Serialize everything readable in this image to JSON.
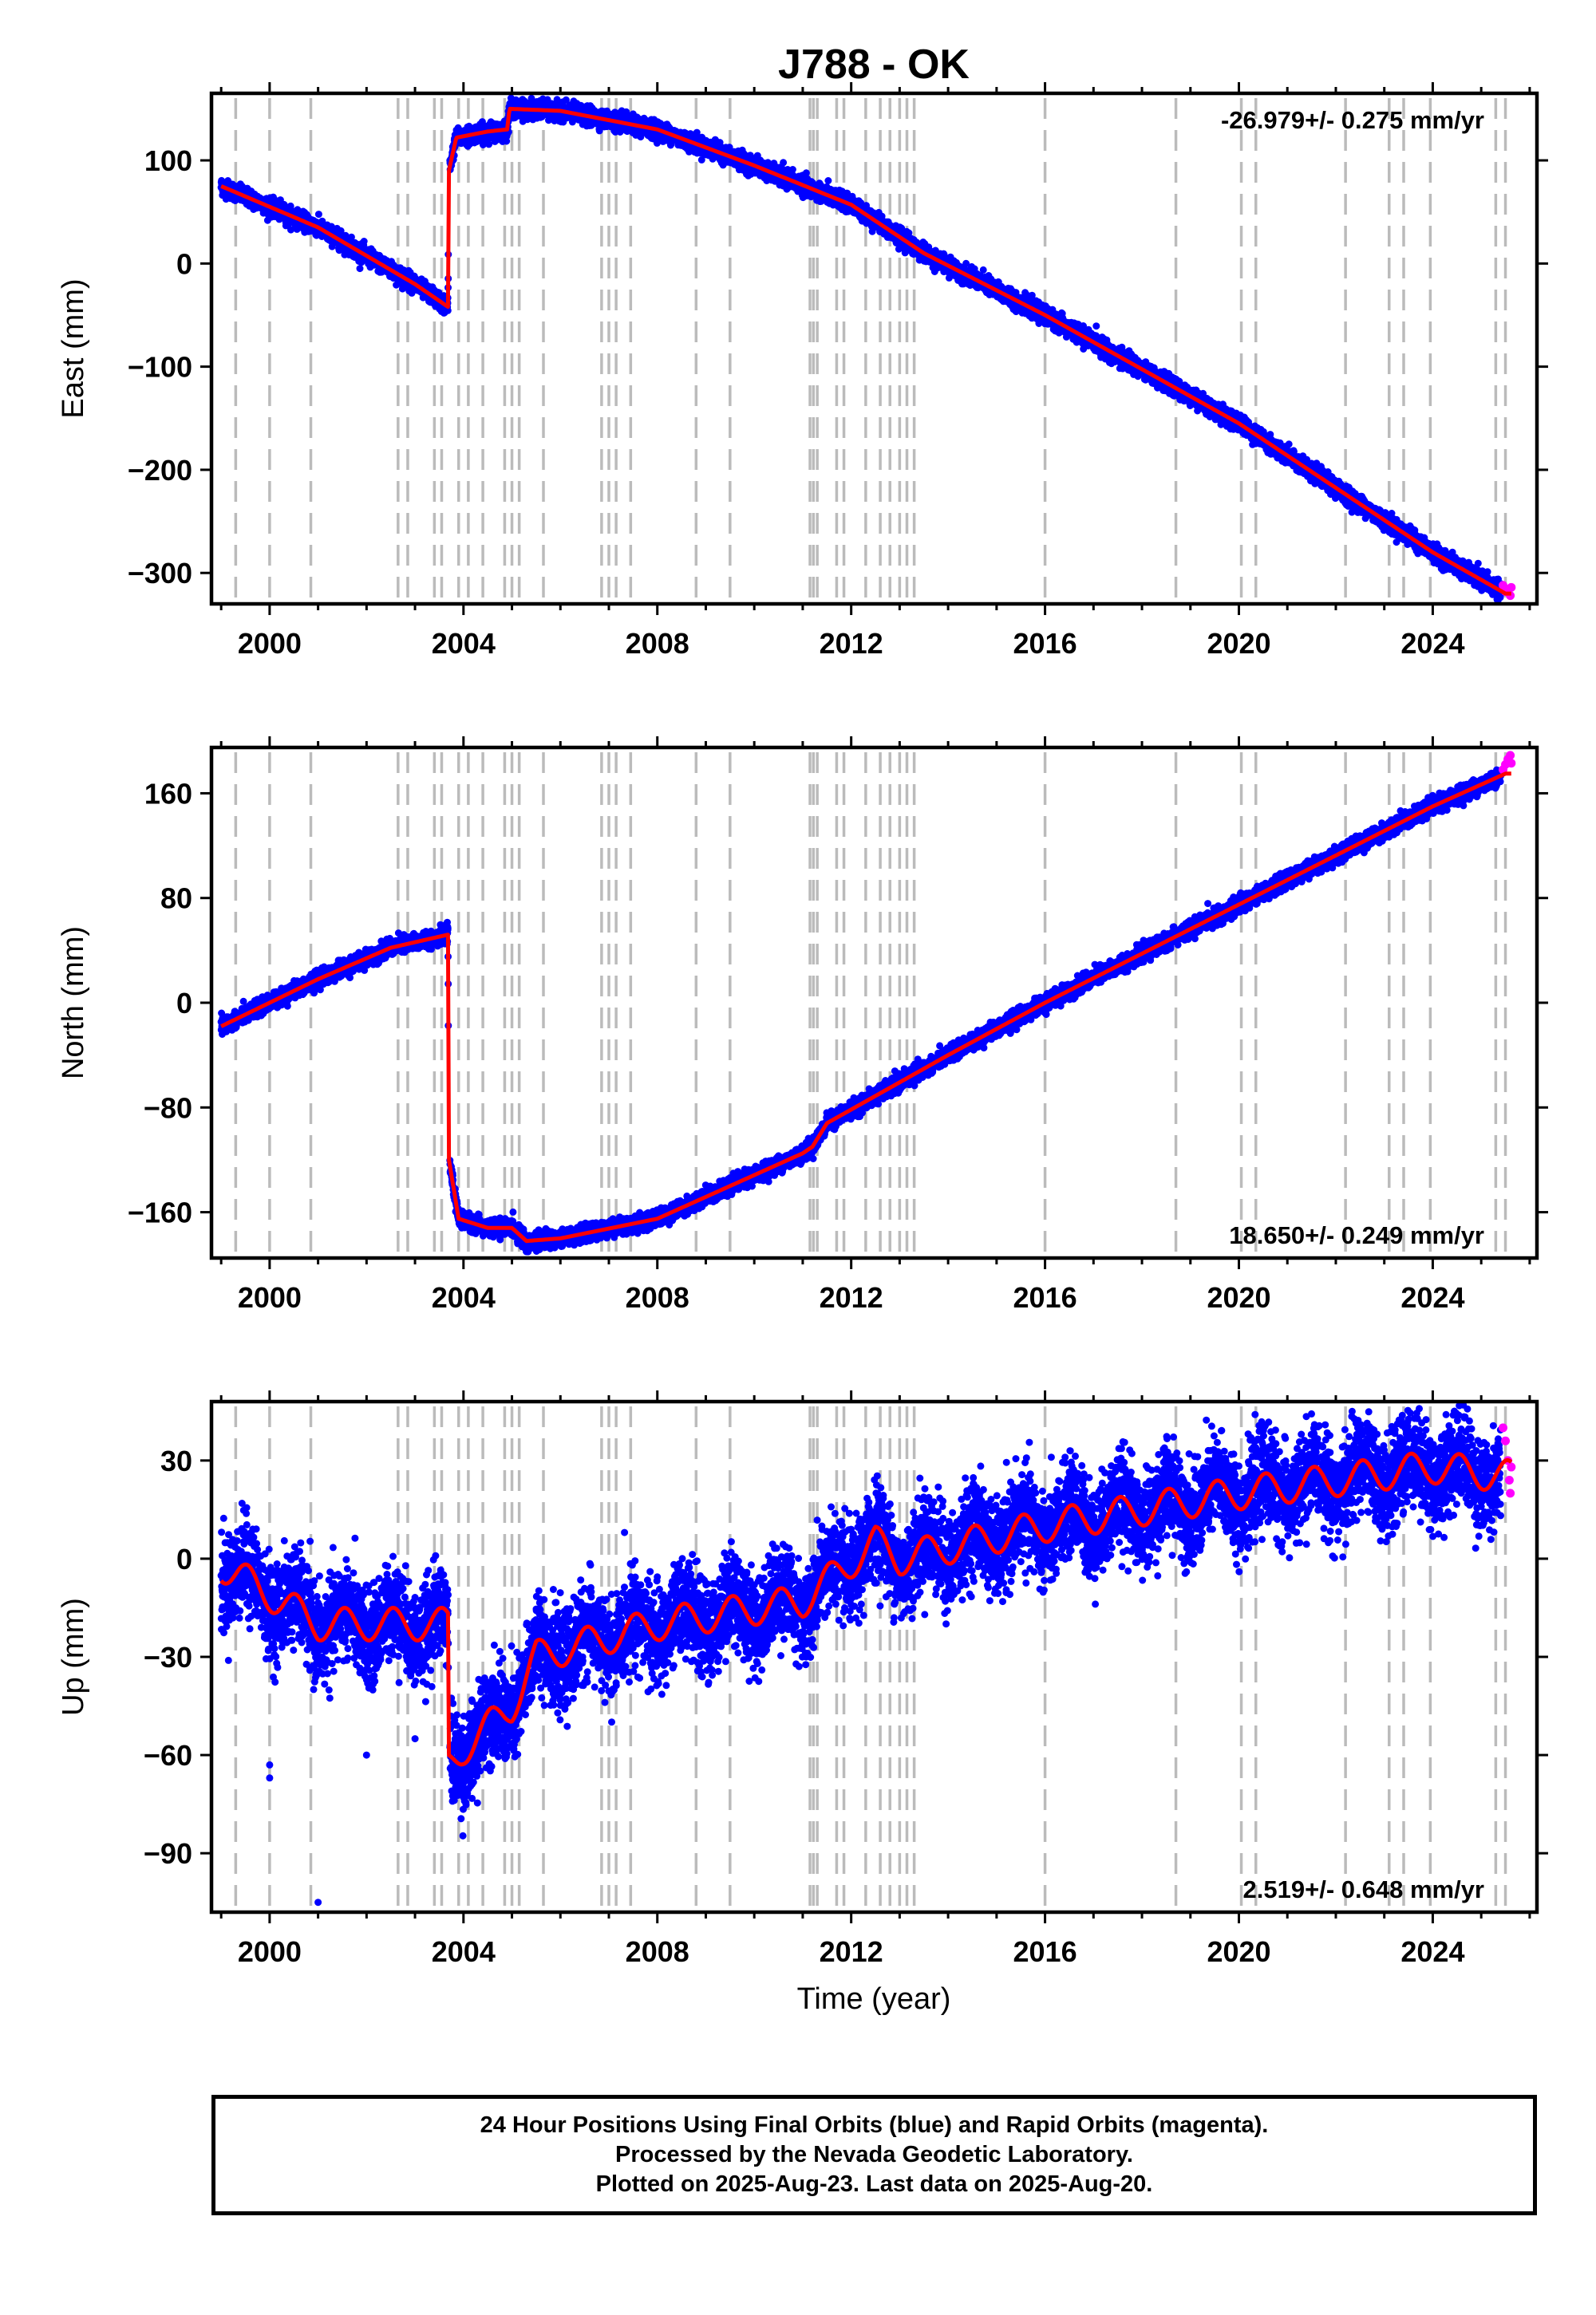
{
  "title": "J788 - OK",
  "xlabel": "Time (year)",
  "colors": {
    "final_orbits": "#0000ff",
    "rapid_orbits": "#ff00ff",
    "model": "#ff0000",
    "equipment_change_lines": "#bbbbbb",
    "frame": "#000000"
  },
  "chart_data": [
    {
      "type": "scatter",
      "panel": "east",
      "ylabel": "East (mm)",
      "xlim": [
        1998.8,
        2026.15
      ],
      "ylim": [
        -330,
        165
      ],
      "xticks": [
        2000,
        2004,
        2008,
        2012,
        2016,
        2020,
        2024
      ],
      "yticks": [
        100,
        0,
        -100,
        -200,
        -300
      ],
      "rate_label": "-26.979+/- 0.275 mm/yr",
      "rate_position": "top-right",
      "model_points": [
        [
          1999.0,
          75
        ],
        [
          2001.0,
          35
        ],
        [
          2003.0,
          -20
        ],
        [
          2003.68,
          -42
        ],
        [
          2003.7,
          90
        ],
        [
          2003.85,
          122
        ],
        [
          2004.5,
          128
        ],
        [
          2004.9,
          130
        ],
        [
          2004.95,
          150
        ],
        [
          2006.0,
          148
        ],
        [
          2008.0,
          130
        ],
        [
          2010.0,
          95
        ],
        [
          2012.0,
          57
        ],
        [
          2013.5,
          10
        ],
        [
          2016.0,
          -50
        ],
        [
          2020.0,
          -155
        ],
        [
          2024.0,
          -280
        ],
        [
          2025.5,
          -320
        ]
      ],
      "scatter_noise_mm": 4,
      "rapid_points": [
        [
          2025.45,
          -312
        ],
        [
          2025.5,
          -318
        ],
        [
          2025.55,
          -316
        ],
        [
          2025.6,
          -322
        ],
        [
          2025.62,
          -314
        ]
      ]
    },
    {
      "type": "scatter",
      "panel": "north",
      "ylabel": "North (mm)",
      "xlim": [
        1998.8,
        2026.15
      ],
      "ylim": [
        -195,
        195
      ],
      "xticks": [
        2000,
        2004,
        2008,
        2012,
        2016,
        2020,
        2024
      ],
      "yticks": [
        160,
        80,
        0,
        -80,
        -160
      ],
      "rate_label": "18.650+/- 0.249 mm/yr",
      "rate_position": "bottom-right",
      "model_points": [
        [
          1999.0,
          -18
        ],
        [
          2001.0,
          18
        ],
        [
          2002.5,
          42
        ],
        [
          2003.68,
          52
        ],
        [
          2003.7,
          -120
        ],
        [
          2003.9,
          -165
        ],
        [
          2004.5,
          -172
        ],
        [
          2005.0,
          -172
        ],
        [
          2005.3,
          -182
        ],
        [
          2006.0,
          -180
        ],
        [
          2008.0,
          -165
        ],
        [
          2011.0,
          -115
        ],
        [
          2011.2,
          -110
        ],
        [
          2011.5,
          -92
        ],
        [
          2014.0,
          -40
        ],
        [
          2016.0,
          0
        ],
        [
          2020.0,
          75
        ],
        [
          2024.0,
          150
        ],
        [
          2025.5,
          175
        ]
      ],
      "scatter_noise_mm": 3,
      "rapid_points": [
        [
          2025.45,
          178
        ],
        [
          2025.5,
          182
        ],
        [
          2025.55,
          186
        ],
        [
          2025.6,
          189
        ],
        [
          2025.62,
          183
        ]
      ]
    },
    {
      "type": "scatter",
      "panel": "up",
      "ylabel": "Up (mm)",
      "xlim": [
        1998.8,
        2026.15
      ],
      "ylim": [
        -108,
        48
      ],
      "xticks": [
        2000,
        2004,
        2008,
        2012,
        2016,
        2020,
        2024
      ],
      "yticks": [
        30,
        0,
        -30,
        -60,
        -90
      ],
      "rate_label": "2.519+/- 0.648 mm/yr",
      "rate_position": "bottom-right",
      "model_points": [
        [
          1999.0,
          -2
        ],
        [
          2001.0,
          -20
        ],
        [
          2003.68,
          -20
        ],
        [
          2003.7,
          -63
        ],
        [
          2004.0,
          -58
        ],
        [
          2005.0,
          -45
        ],
        [
          2005.5,
          -30
        ],
        [
          2008.0,
          -20
        ],
        [
          2011.0,
          -13
        ],
        [
          2012.5,
          5
        ],
        [
          2013.0,
          0
        ],
        [
          2016.0,
          10
        ],
        [
          2020.0,
          20
        ],
        [
          2024.0,
          28
        ],
        [
          2025.6,
          25
        ]
      ],
      "seasonal_amplitude_mm": 5,
      "scatter_noise_mm": 7,
      "outliers": [
        [
          2000.0,
          -63
        ],
        [
          2000.0,
          -67
        ],
        [
          2001.0,
          -105
        ],
        [
          2002.0,
          -60
        ],
        [
          2003.0,
          -55
        ]
      ],
      "rapid_points": [
        [
          2025.45,
          40
        ],
        [
          2025.5,
          36
        ],
        [
          2025.55,
          30
        ],
        [
          2025.58,
          24
        ],
        [
          2025.6,
          20
        ],
        [
          2025.62,
          28
        ]
      ]
    }
  ],
  "equipment_change_years": [
    1999.3,
    2000.0,
    2000.85,
    2002.65,
    2002.85,
    2003.4,
    2003.55,
    2003.9,
    2004.1,
    2004.4,
    2004.85,
    2005.0,
    2005.15,
    2005.65,
    2006.85,
    2007.0,
    2007.15,
    2007.45,
    2008.8,
    2009.5,
    2011.15,
    2011.22,
    2011.3,
    2011.7,
    2011.85,
    2012.3,
    2012.6,
    2012.8,
    2013.0,
    2013.15,
    2013.3,
    2016.0,
    2018.7,
    2020.05,
    2020.35,
    2022.2,
    2023.1,
    2023.4,
    2023.95,
    2025.3,
    2025.5
  ],
  "footer": {
    "line1": "24 Hour Positions Using Final Orbits (blue) and Rapid Orbits (magenta).",
    "line2": "Processed by the Nevada Geodetic Laboratory.",
    "line3": "Plotted on 2025-Aug-23. Last data on 2025-Aug-20."
  }
}
